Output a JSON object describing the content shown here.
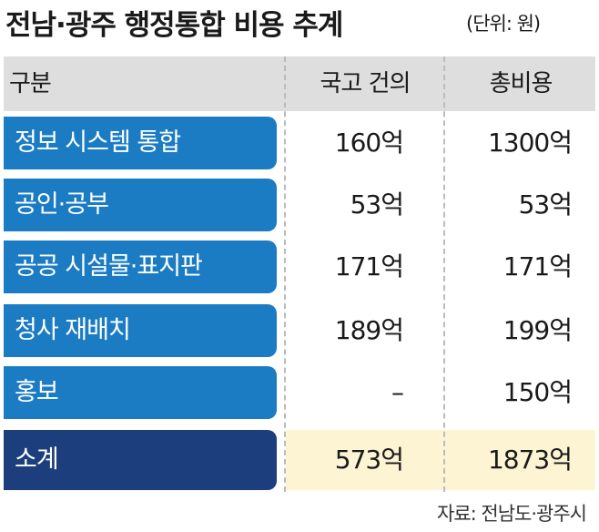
{
  "header": {
    "title": "전남·광주 행정통합 비용 추계",
    "unit": "(단위: 원)"
  },
  "table": {
    "columns": [
      "구분",
      "국고 건의",
      "총비용"
    ],
    "rows": [
      [
        "정보 시스템 통합",
        "160억",
        "1300억"
      ],
      [
        "공인·공부",
        "53억",
        "53억"
      ],
      [
        "공공 시설물·표지판",
        "171억",
        "171억"
      ],
      [
        "청사 재배치",
        "189억",
        "199억"
      ],
      [
        "홍보",
        "–",
        "150억"
      ]
    ],
    "total": [
      "소계",
      "573억",
      "1873억"
    ]
  },
  "source": "자료: 전남도·광주시"
}
